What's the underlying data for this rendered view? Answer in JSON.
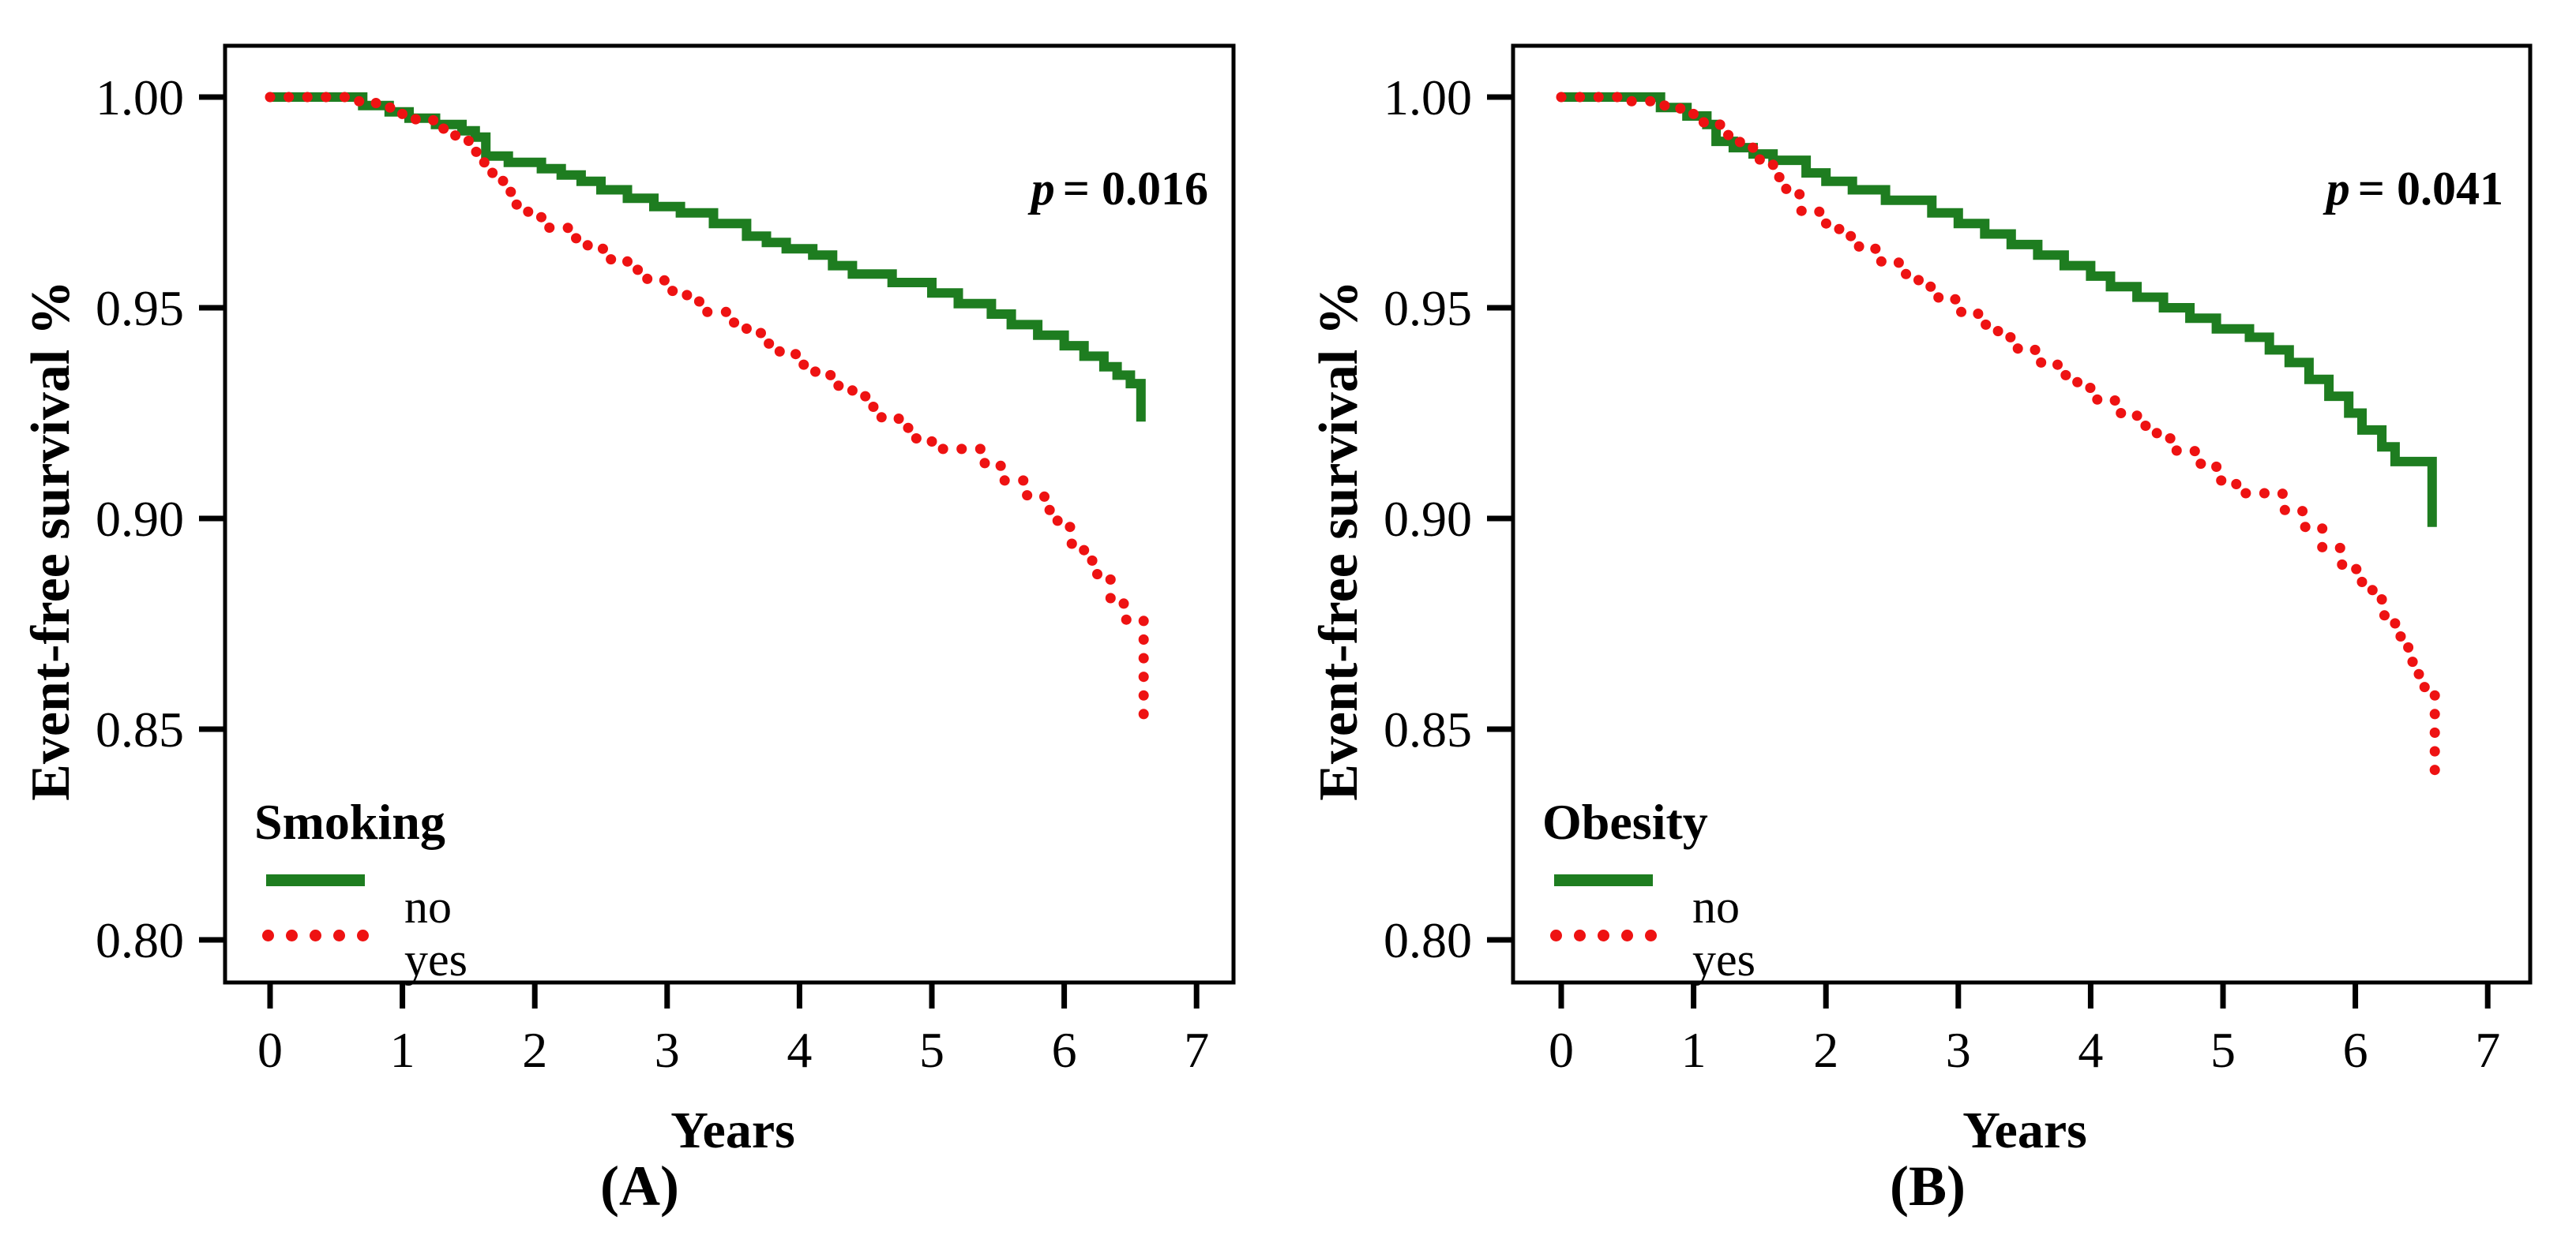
{
  "figure": {
    "background": "#ffffff",
    "colors": {
      "no_line": "#1e7d20",
      "yes_line": "#ee1212",
      "text": "#000000",
      "frame": "#000000"
    },
    "panels": [
      {
        "id": "A",
        "caption": "(A)",
        "ylabel": "Event-free survival %",
        "xlabel": "Years",
        "p_symbol": "p",
        "p_rest": "= 0.016",
        "legend": {
          "title": "Smoking",
          "items": [
            {
              "label": "no",
              "style": "solid",
              "color": "#1e7d20"
            },
            {
              "label": "yes",
              "style": "dotted",
              "color": "#ee1212"
            }
          ]
        },
        "chart_data": {
          "type": "line",
          "step": true,
          "title": "",
          "xlabel": "Years",
          "ylabel": "Event-free survival %",
          "annotation": "p = 0.016",
          "grid": false,
          "legend_position": "lower-left",
          "xlim": [
            -0.34,
            7.29
          ],
          "ylim": [
            0.7899,
            1.0122
          ],
          "x_ticks": [
            0,
            1,
            2,
            3,
            4,
            5,
            6,
            7
          ],
          "y_ticks": [
            1.0,
            0.95,
            0.9,
            0.85,
            0.8
          ],
          "y_tick_labels": [
            "1.00",
            "0.95",
            "0.90",
            "0.85",
            "0.80"
          ],
          "series": [
            {
              "name": "no",
              "color": "#1e7d20",
              "dash": "solid",
              "points": [
                [
                  0,
                  1.0
                ],
                [
                  0.7,
                  0.998
                ],
                [
                  0.9,
                  0.9965
                ],
                [
                  1.05,
                  0.995
                ],
                [
                  1.25,
                  0.9935
                ],
                [
                  1.45,
                  0.992
                ],
                [
                  1.55,
                  0.9905
                ],
                [
                  1.63,
                  0.986
                ],
                [
                  1.8,
                  0.9845
                ],
                [
                  2.05,
                  0.983
                ],
                [
                  2.2,
                  0.9815
                ],
                [
                  2.35,
                  0.98
                ],
                [
                  2.5,
                  0.978
                ],
                [
                  2.7,
                  0.976
                ],
                [
                  2.9,
                  0.974
                ],
                [
                  3.1,
                  0.9725
                ],
                [
                  3.35,
                  0.97
                ],
                [
                  3.6,
                  0.967
                ],
                [
                  3.75,
                  0.9655
                ],
                [
                  3.9,
                  0.964
                ],
                [
                  4.1,
                  0.9625
                ],
                [
                  4.25,
                  0.96
                ],
                [
                  4.4,
                  0.958
                ],
                [
                  4.7,
                  0.956
                ],
                [
                  5.0,
                  0.9535
                ],
                [
                  5.2,
                  0.951
                ],
                [
                  5.45,
                  0.9485
                ],
                [
                  5.6,
                  0.946
                ],
                [
                  5.8,
                  0.9435
                ],
                [
                  6.0,
                  0.941
                ],
                [
                  6.15,
                  0.9385
                ],
                [
                  6.3,
                  0.936
                ],
                [
                  6.4,
                  0.934
                ],
                [
                  6.5,
                  0.932
                ],
                [
                  6.58,
                  0.923
                ]
              ]
            },
            {
              "name": "yes",
              "color": "#ee1212",
              "dash": "dotted",
              "points": [
                [
                  0,
                  1.0
                ],
                [
                  0.6,
                  0.999
                ],
                [
                  0.8,
                  0.9975
                ],
                [
                  0.95,
                  0.996
                ],
                [
                  1.1,
                  0.9945
                ],
                [
                  1.25,
                  0.9925
                ],
                [
                  1.4,
                  0.99
                ],
                [
                  1.5,
                  0.987
                ],
                [
                  1.6,
                  0.9845
                ],
                [
                  1.68,
                  0.981
                ],
                [
                  1.76,
                  0.9775
                ],
                [
                  1.85,
                  0.9745
                ],
                [
                  1.95,
                  0.9715
                ],
                [
                  2.1,
                  0.969
                ],
                [
                  2.25,
                  0.9665
                ],
                [
                  2.4,
                  0.964
                ],
                [
                  2.55,
                  0.9615
                ],
                [
                  2.7,
                  0.959
                ],
                [
                  2.85,
                  0.9565
                ],
                [
                  3.0,
                  0.954
                ],
                [
                  3.15,
                  0.9515
                ],
                [
                  3.3,
                  0.949
                ],
                [
                  3.45,
                  0.9465
                ],
                [
                  3.6,
                  0.944
                ],
                [
                  3.72,
                  0.9415
                ],
                [
                  3.85,
                  0.939
                ],
                [
                  4.0,
                  0.9365
                ],
                [
                  4.12,
                  0.934
                ],
                [
                  4.25,
                  0.9315
                ],
                [
                  4.4,
                  0.929
                ],
                [
                  4.5,
                  0.9265
                ],
                [
                  4.62,
                  0.924
                ],
                [
                  4.75,
                  0.9215
                ],
                [
                  4.88,
                  0.919
                ],
                [
                  5.0,
                  0.9165
                ],
                [
                  5.4,
                  0.9125
                ],
                [
                  5.55,
                  0.909
                ],
                [
                  5.7,
                  0.9055
                ],
                [
                  5.85,
                  0.902
                ],
                [
                  5.95,
                  0.898
                ],
                [
                  6.05,
                  0.894
                ],
                [
                  6.15,
                  0.89
                ],
                [
                  6.25,
                  0.8855
                ],
                [
                  6.35,
                  0.881
                ],
                [
                  6.45,
                  0.876
                ],
                [
                  6.6,
                  0.853
                ]
              ]
            }
          ]
        }
      },
      {
        "id": "B",
        "caption": "(B)",
        "ylabel": "Event-free survival %",
        "xlabel": "Years",
        "p_symbol": "p",
        "p_rest": "= 0.041",
        "legend": {
          "title": "Obesity",
          "items": [
            {
              "label": "no",
              "style": "solid",
              "color": "#1e7d20"
            },
            {
              "label": "yes",
              "style": "dotted",
              "color": "#ee1212"
            }
          ]
        },
        "chart_data": {
          "type": "line",
          "step": true,
          "title": "",
          "xlabel": "Years",
          "ylabel": "Event-free survival %",
          "annotation": "p = 0.041",
          "grid": false,
          "legend_position": "lower-left",
          "xlim": [
            -0.34,
            7.29
          ],
          "ylim": [
            0.7899,
            1.0122
          ],
          "x_ticks": [
            0,
            1,
            2,
            3,
            4,
            5,
            6,
            7
          ],
          "y_ticks": [
            1.0,
            0.95,
            0.9,
            0.85,
            0.8
          ],
          "y_tick_labels": [
            "1.00",
            "0.95",
            "0.90",
            "0.85",
            "0.80"
          ],
          "series": [
            {
              "name": "no",
              "color": "#1e7d20",
              "dash": "solid",
              "points": [
                [
                  0,
                  1.0
                ],
                [
                  0.75,
                  0.9975
                ],
                [
                  0.95,
                  0.9955
                ],
                [
                  1.1,
                  0.9935
                ],
                [
                  1.17,
                  0.9895
                ],
                [
                  1.3,
                  0.988
                ],
                [
                  1.45,
                  0.9865
                ],
                [
                  1.6,
                  0.985
                ],
                [
                  1.85,
                  0.982
                ],
                [
                  2.0,
                  0.98
                ],
                [
                  2.2,
                  0.978
                ],
                [
                  2.45,
                  0.9755
                ],
                [
                  2.8,
                  0.9725
                ],
                [
                  3.0,
                  0.97
                ],
                [
                  3.2,
                  0.9675
                ],
                [
                  3.4,
                  0.965
                ],
                [
                  3.6,
                  0.9625
                ],
                [
                  3.8,
                  0.96
                ],
                [
                  4.0,
                  0.9575
                ],
                [
                  4.15,
                  0.955
                ],
                [
                  4.35,
                  0.9525
                ],
                [
                  4.55,
                  0.95
                ],
                [
                  4.75,
                  0.9475
                ],
                [
                  4.95,
                  0.945
                ],
                [
                  5.2,
                  0.943
                ],
                [
                  5.35,
                  0.94
                ],
                [
                  5.5,
                  0.937
                ],
                [
                  5.65,
                  0.933
                ],
                [
                  5.8,
                  0.929
                ],
                [
                  5.95,
                  0.925
                ],
                [
                  6.05,
                  0.921
                ],
                [
                  6.2,
                  0.917
                ],
                [
                  6.3,
                  0.9135
                ],
                [
                  6.58,
                  0.898
                ]
              ]
            },
            {
              "name": "yes",
              "color": "#ee1212",
              "dash": "dotted",
              "points": [
                [
                  0,
                  1.0
                ],
                [
                  0.5,
                  0.999
                ],
                [
                  0.7,
                  0.998
                ],
                [
                  0.9,
                  0.996
                ],
                [
                  1.05,
                  0.994
                ],
                [
                  1.2,
                  0.991
                ],
                [
                  1.35,
                  0.988
                ],
                [
                  1.5,
                  0.985
                ],
                [
                  1.6,
                  0.981
                ],
                [
                  1.7,
                  0.977
                ],
                [
                  1.8,
                  0.973
                ],
                [
                  1.95,
                  0.97
                ],
                [
                  2.1,
                  0.967
                ],
                [
                  2.25,
                  0.964
                ],
                [
                  2.4,
                  0.961
                ],
                [
                  2.55,
                  0.958
                ],
                [
                  2.7,
                  0.955
                ],
                [
                  2.85,
                  0.952
                ],
                [
                  3.0,
                  0.949
                ],
                [
                  3.15,
                  0.946
                ],
                [
                  3.3,
                  0.943
                ],
                [
                  3.45,
                  0.94
                ],
                [
                  3.6,
                  0.937
                ],
                [
                  3.75,
                  0.934
                ],
                [
                  3.9,
                  0.931
                ],
                [
                  4.05,
                  0.928
                ],
                [
                  4.2,
                  0.925
                ],
                [
                  4.35,
                  0.922
                ],
                [
                  4.5,
                  0.919
                ],
                [
                  4.65,
                  0.916
                ],
                [
                  4.8,
                  0.913
                ],
                [
                  4.95,
                  0.909
                ],
                [
                  5.1,
                  0.906
                ],
                [
                  5.45,
                  0.902
                ],
                [
                  5.6,
                  0.898
                ],
                [
                  5.75,
                  0.893
                ],
                [
                  5.9,
                  0.888
                ],
                [
                  6.05,
                  0.883
                ],
                [
                  6.2,
                  0.877
                ],
                [
                  6.3,
                  0.872
                ],
                [
                  6.4,
                  0.866
                ],
                [
                  6.48,
                  0.86
                ],
                [
                  6.6,
                  0.838
                ]
              ]
            }
          ]
        }
      }
    ]
  }
}
